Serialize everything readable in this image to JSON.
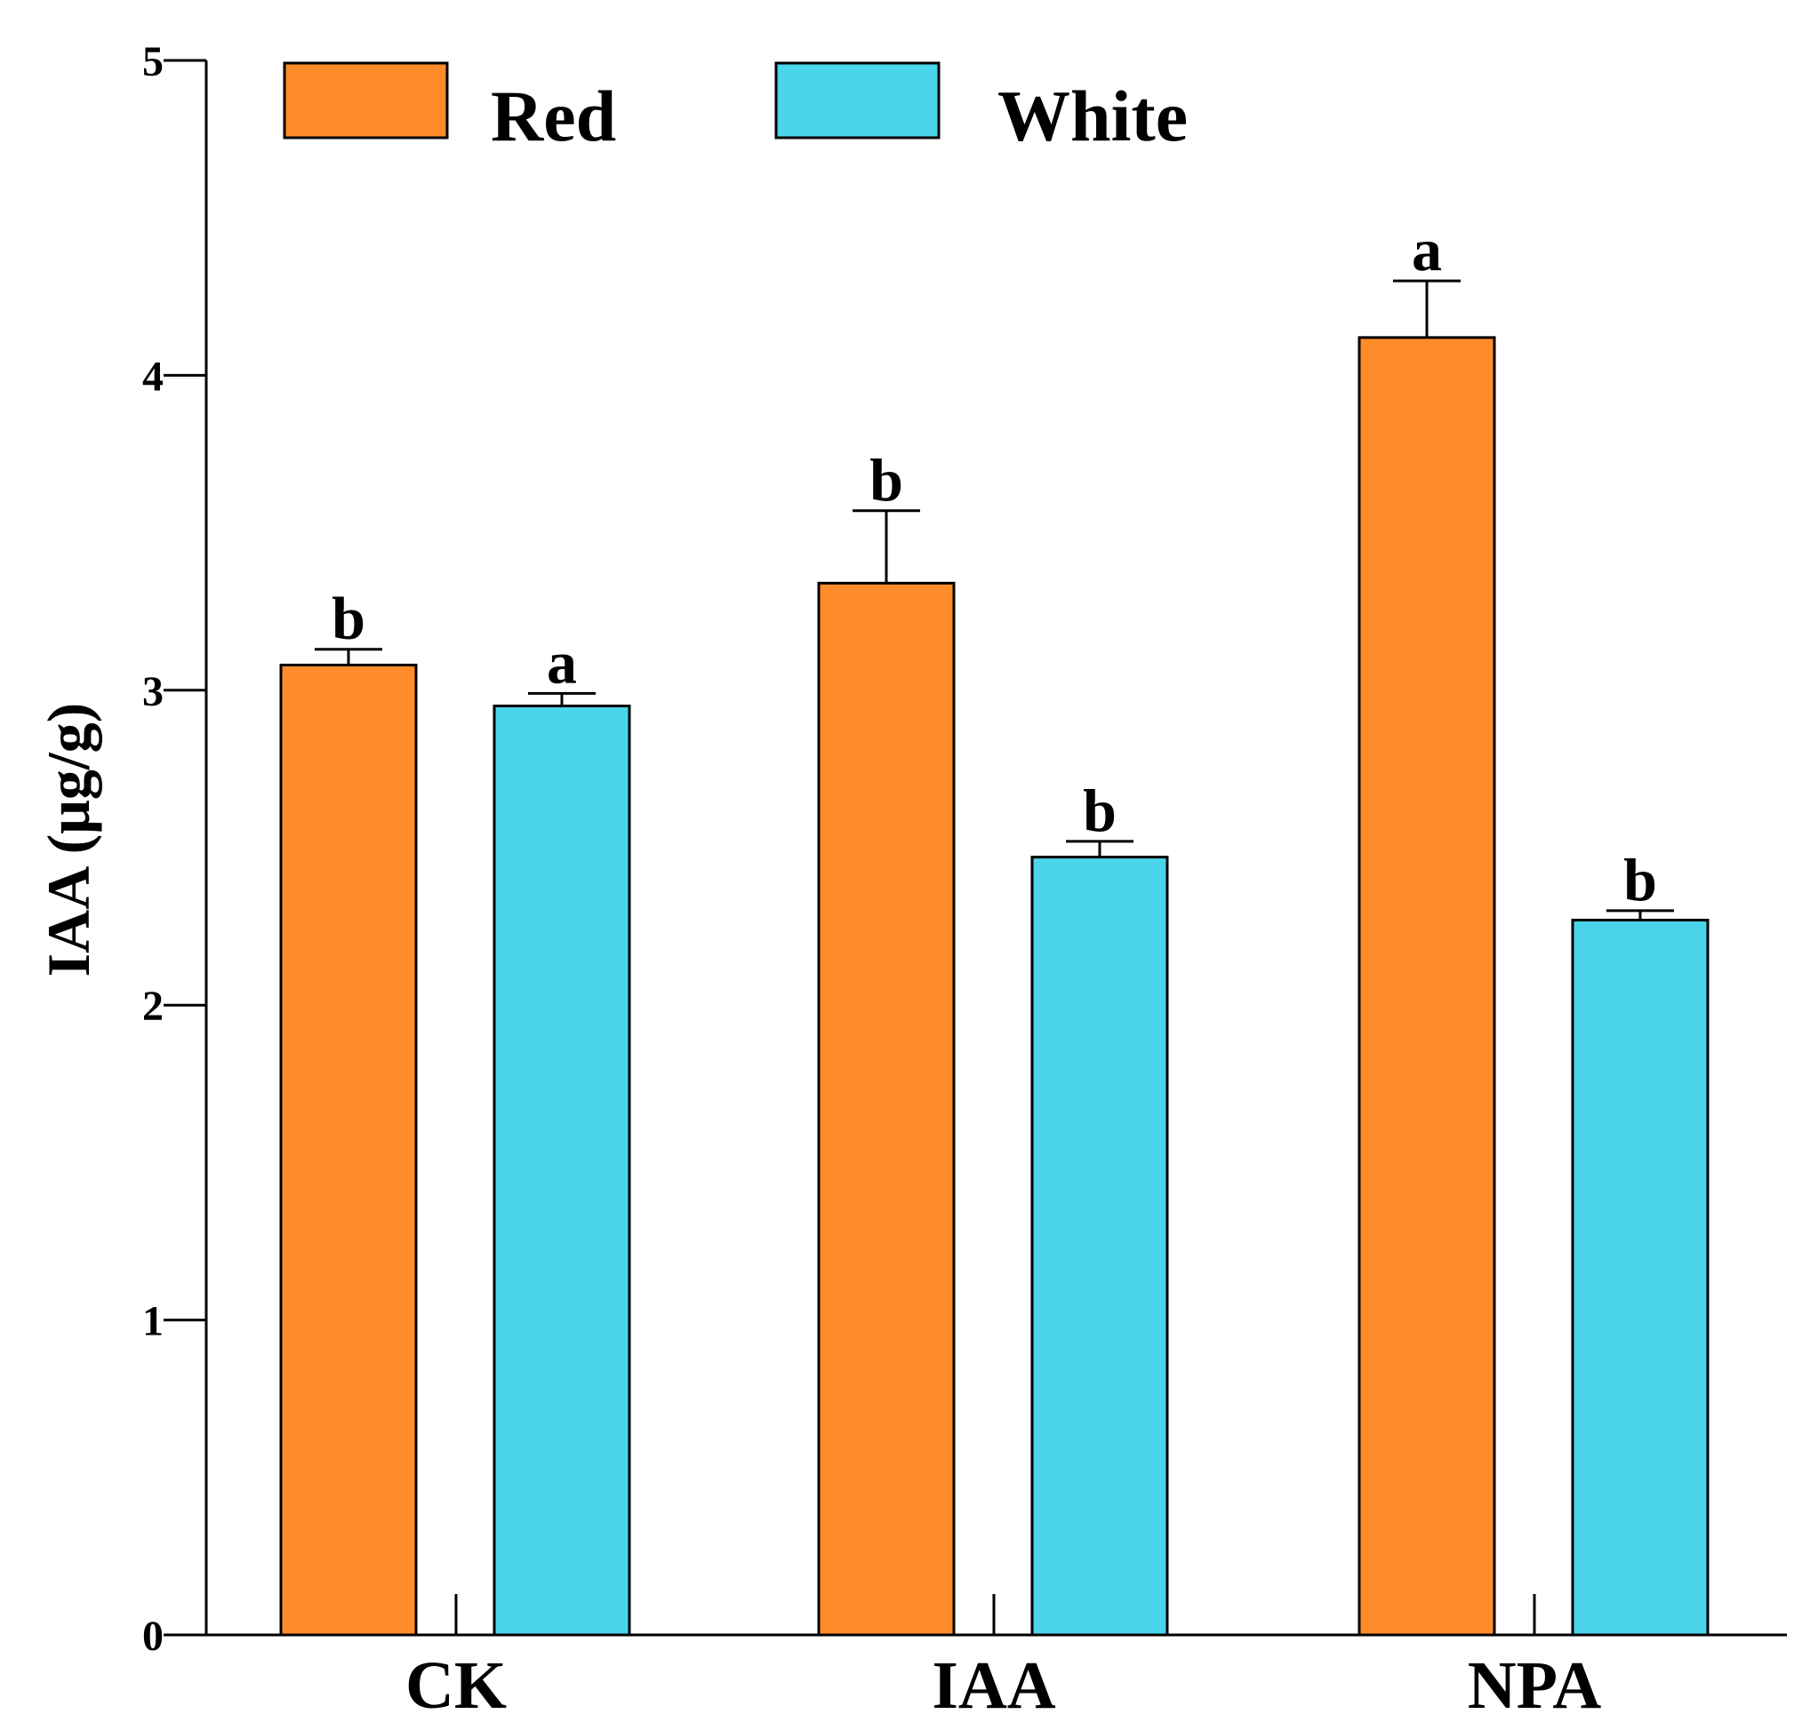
{
  "chart_data": {
    "type": "bar",
    "title": "",
    "xlabel": "",
    "ylabel": "IAA (μg/g)",
    "ylim": [
      0,
      5
    ],
    "yticks": [
      0,
      1,
      2,
      3,
      4,
      5
    ],
    "ytick_labels": [
      "0",
      "1",
      "2",
      "3",
      "4",
      "5"
    ],
    "categories": [
      "CK",
      "IAA",
      "NPA"
    ],
    "legend_position": "top-left",
    "series": [
      {
        "name": "Red",
        "color": "#FF8C2A",
        "values": [
          3.08,
          3.34,
          4.12
        ],
        "errors": [
          0.05,
          0.23,
          0.18
        ],
        "labels": [
          "b",
          "b",
          "a"
        ]
      },
      {
        "name": "White",
        "color": "#4AD5EA",
        "values": [
          2.95,
          2.47,
          2.27
        ],
        "errors": [
          0.04,
          0.05,
          0.03
        ],
        "labels": [
          "a",
          "b",
          "b"
        ]
      }
    ]
  }
}
